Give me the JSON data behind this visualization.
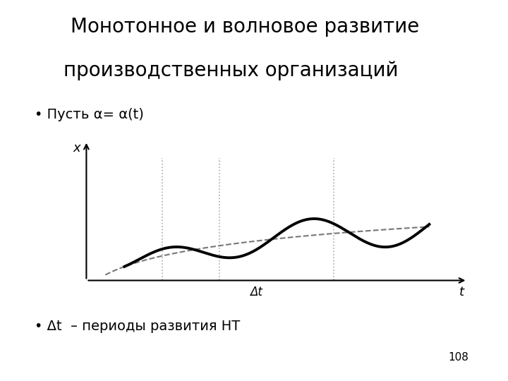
{
  "title_line1": "Монотонное и волновое развитие",
  "title_line2": "производственных организаций",
  "bullet1": "• Пусть α= α(t)",
  "bullet2": "• Δt  – периоды развития НТ",
  "page_number": "108",
  "x_label": "x",
  "t_label": "t",
  "delta_t_label": "Δt",
  "background_color": "#ffffff",
  "axis_color": "#000000",
  "wave_color": "#000000",
  "dashed_color": "#777777",
  "dotted_color": "#aaaaaa",
  "title_fontsize": 20,
  "bullet_fontsize": 14,
  "axis_label_fontsize": 13,
  "page_fontsize": 11
}
